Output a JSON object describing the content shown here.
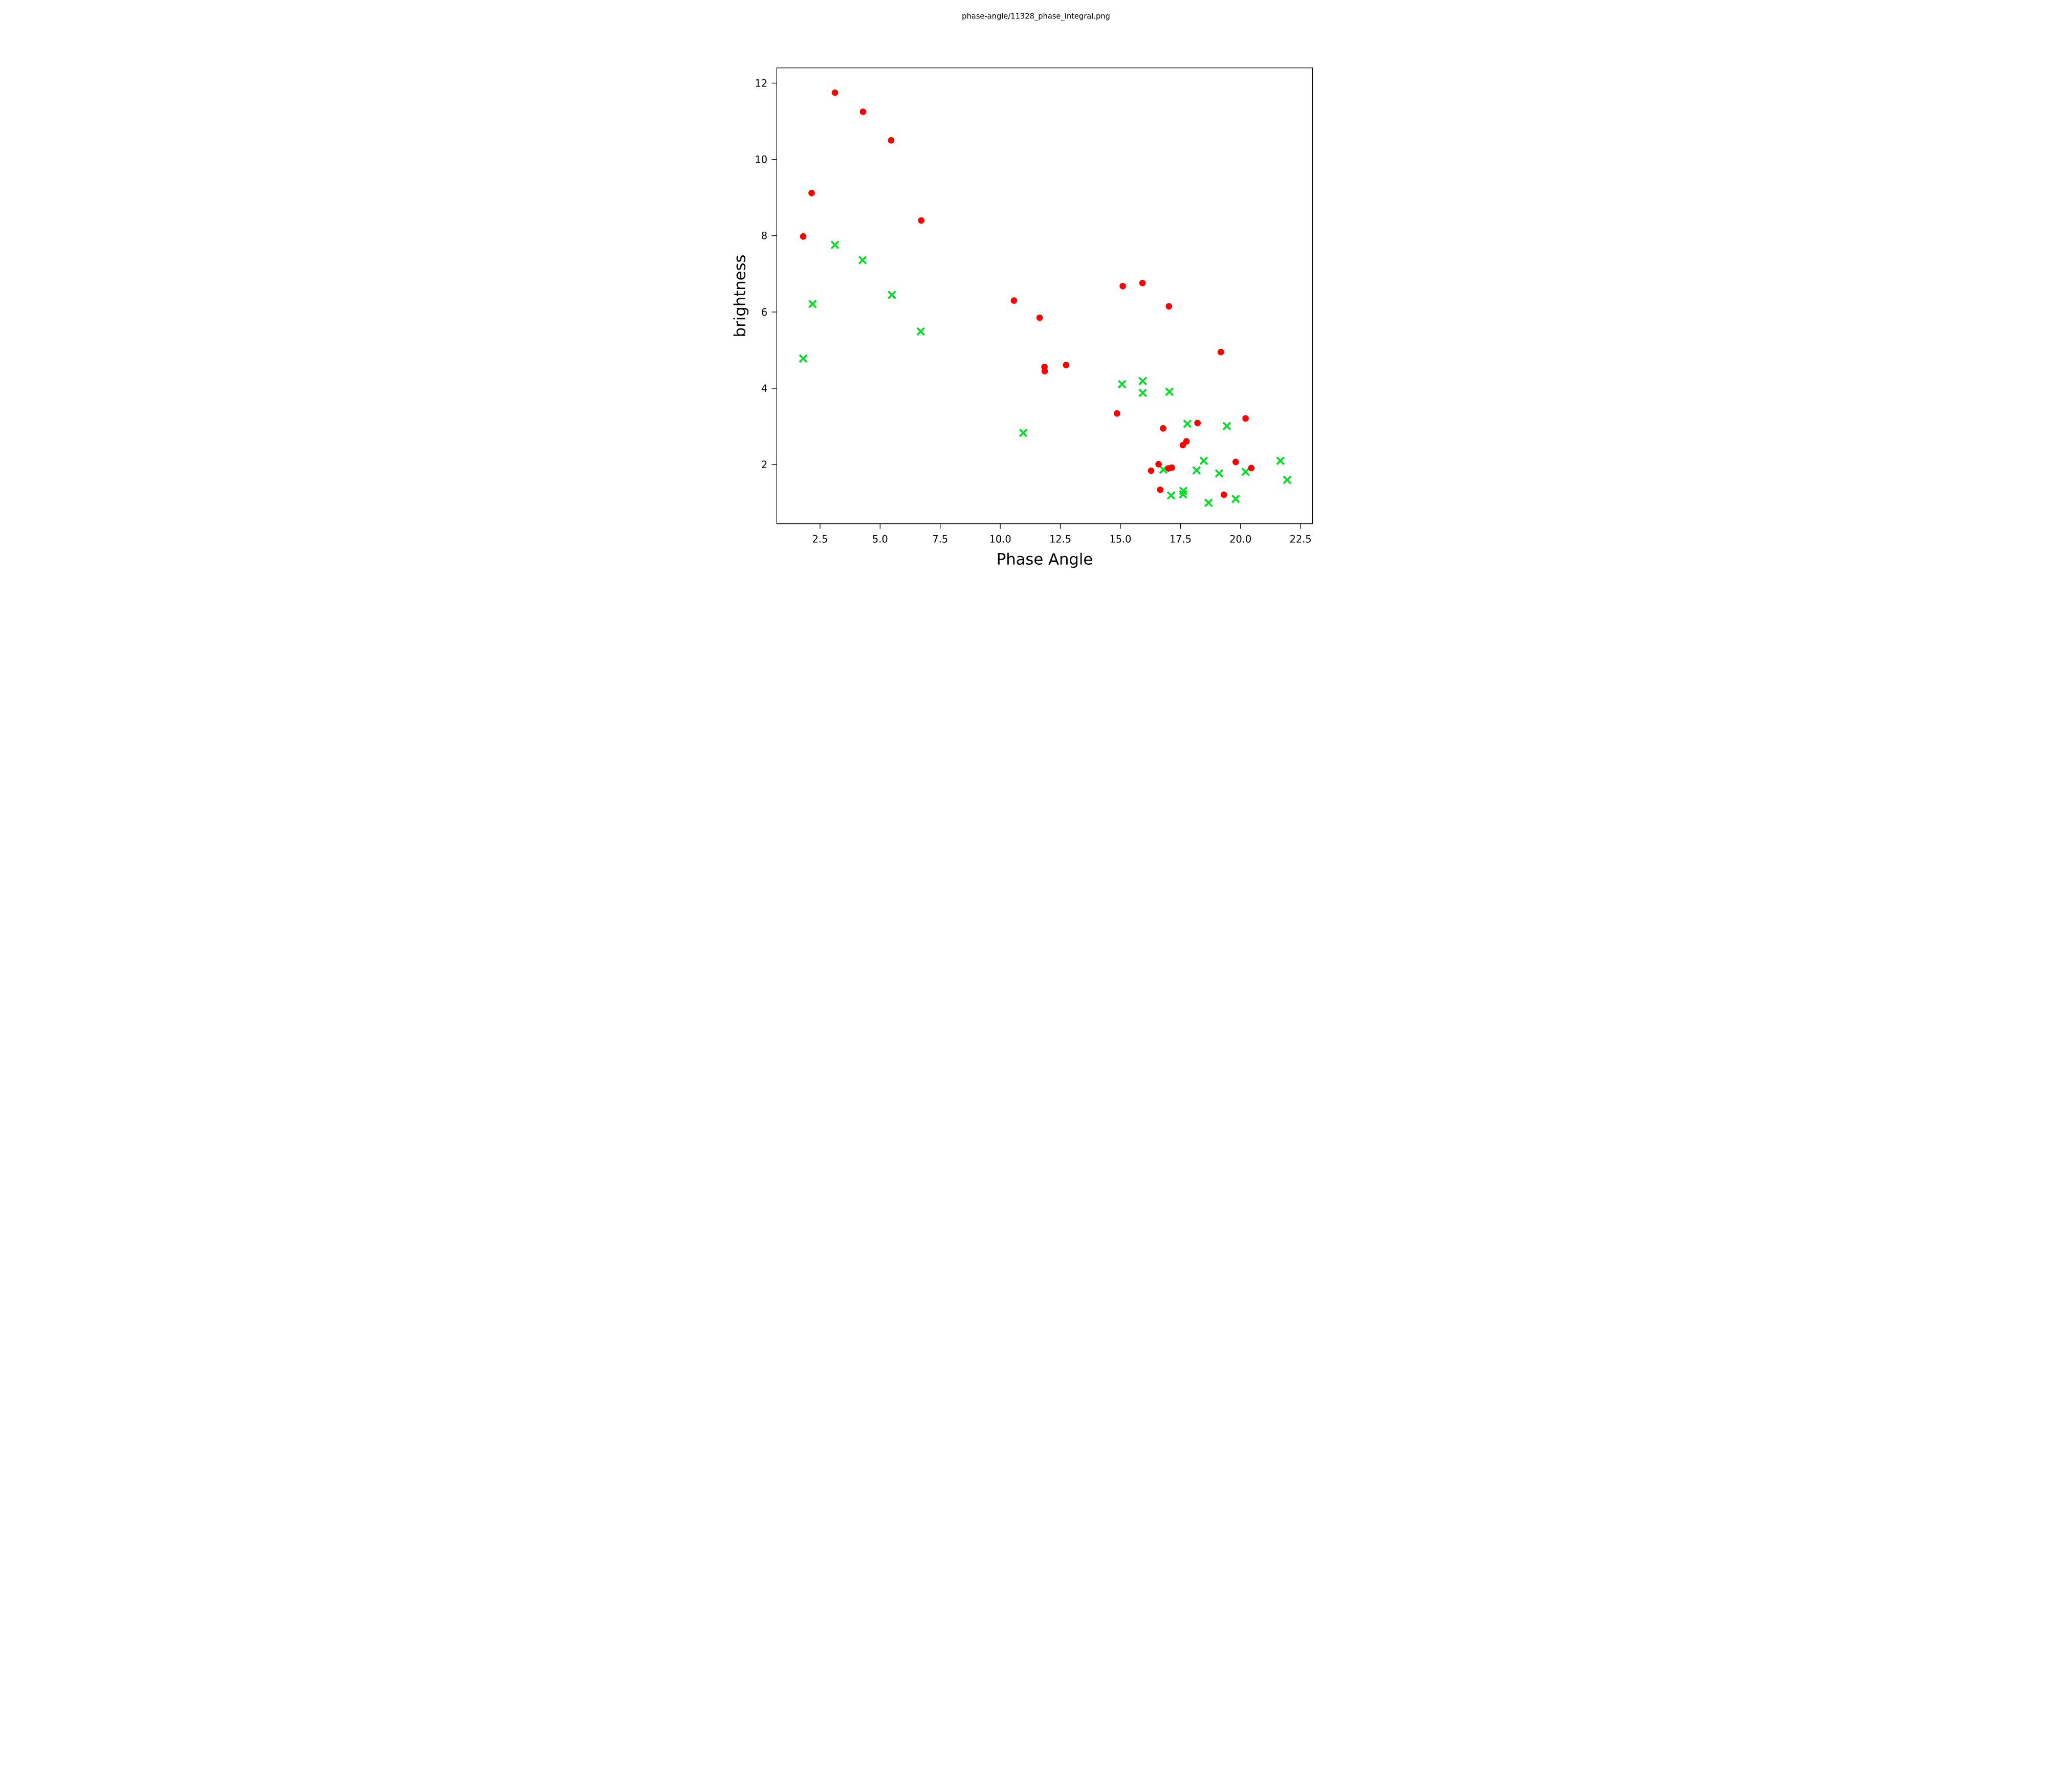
{
  "chart_data": {
    "type": "scatter",
    "title": "phase-angle/11328_phase_integral.png",
    "xlabel": "Phase Angle",
    "ylabel": "brightness",
    "xlim": [
      0.7,
      23.0
    ],
    "ylim": [
      0.45,
      12.4
    ],
    "grid": false,
    "legend": "none",
    "x_ticks": [
      {
        "value": 2.5,
        "label": "2.5"
      },
      {
        "value": 5.0,
        "label": "5.0"
      },
      {
        "value": 7.5,
        "label": "7.5"
      },
      {
        "value": 10.0,
        "label": "10.0"
      },
      {
        "value": 12.5,
        "label": "12.5"
      },
      {
        "value": 15.0,
        "label": "15.0"
      },
      {
        "value": 17.5,
        "label": "17.5"
      },
      {
        "value": 20.0,
        "label": "20.0"
      },
      {
        "value": 22.5,
        "label": "22.5"
      }
    ],
    "y_ticks": [
      {
        "value": 2,
        "label": "2"
      },
      {
        "value": 4,
        "label": "4"
      },
      {
        "value": 6,
        "label": "6"
      },
      {
        "value": 8,
        "label": "8"
      },
      {
        "value": 10,
        "label": "10"
      },
      {
        "value": 12,
        "label": "12"
      }
    ],
    "series": [
      {
        "name": "green-crosses",
        "marker": "x",
        "color": "#00dd22",
        "points": [
          [
            3.12,
            7.76
          ],
          [
            4.27,
            7.36
          ],
          [
            5.49,
            6.45
          ],
          [
            2.19,
            6.21
          ],
          [
            6.69,
            5.49
          ],
          [
            1.8,
            4.78
          ],
          [
            10.96,
            2.83
          ],
          [
            15.07,
            4.11
          ],
          [
            15.93,
            4.19
          ],
          [
            15.93,
            3.88
          ],
          [
            17.04,
            3.91
          ],
          [
            17.79,
            3.07
          ],
          [
            19.43,
            3.01
          ],
          [
            18.47,
            2.1
          ],
          [
            16.79,
            1.87
          ],
          [
            18.17,
            1.85
          ],
          [
            17.11,
            1.19
          ],
          [
            17.62,
            1.31
          ],
          [
            17.61,
            1.22
          ],
          [
            21.66,
            2.1
          ],
          [
            19.11,
            1.77
          ],
          [
            20.21,
            1.81
          ],
          [
            21.94,
            1.6
          ],
          [
            19.8,
            1.1
          ],
          [
            18.67,
            1.0
          ]
        ]
      },
      {
        "name": "red-circles",
        "marker": "circle",
        "color": "#ff0000",
        "points": [
          [
            3.12,
            11.75
          ],
          [
            4.29,
            11.25
          ],
          [
            5.46,
            10.5
          ],
          [
            2.15,
            9.12
          ],
          [
            1.8,
            7.98
          ],
          [
            6.71,
            8.4
          ],
          [
            10.57,
            6.3
          ],
          [
            11.64,
            5.85
          ],
          [
            11.84,
            4.56
          ],
          [
            11.85,
            4.45
          ],
          [
            12.74,
            4.61
          ],
          [
            15.1,
            6.68
          ],
          [
            15.92,
            6.76
          ],
          [
            17.02,
            6.15
          ],
          [
            19.18,
            4.95
          ],
          [
            14.86,
            3.34
          ],
          [
            16.78,
            2.95
          ],
          [
            18.21,
            3.09
          ],
          [
            17.6,
            2.51
          ],
          [
            17.75,
            2.61
          ],
          [
            20.21,
            3.21
          ],
          [
            19.8,
            2.07
          ],
          [
            20.45,
            1.91
          ],
          [
            19.31,
            1.21
          ],
          [
            16.59,
            2.01
          ],
          [
            16.28,
            1.84
          ],
          [
            17.0,
            1.9
          ],
          [
            17.14,
            1.92
          ],
          [
            16.66,
            1.34
          ]
        ]
      }
    ]
  }
}
